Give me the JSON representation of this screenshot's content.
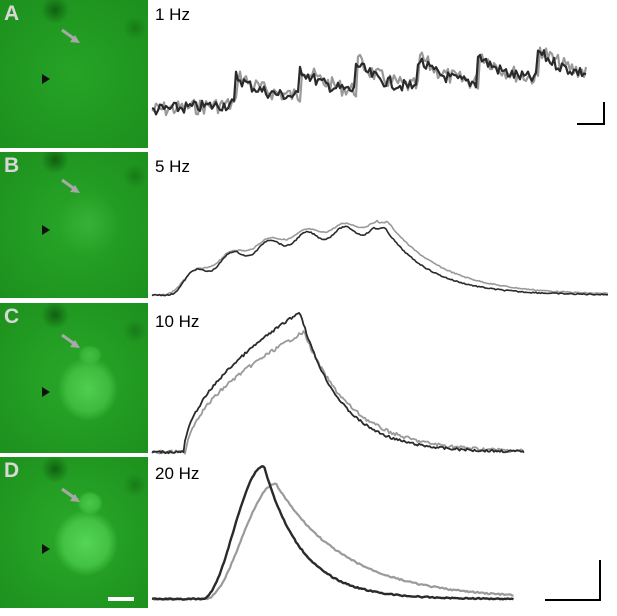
{
  "panels": [
    {
      "letter": "A",
      "frequency": "1 Hz",
      "cell_brightness": 0.0
    },
    {
      "letter": "B",
      "frequency": "5 Hz",
      "cell_brightness": 0.25
    },
    {
      "letter": "C",
      "frequency": "10 Hz",
      "cell_brightness": 0.7
    },
    {
      "letter": "D",
      "frequency": "20 Hz",
      "cell_brightness": 0.9
    }
  ],
  "colors": {
    "background_green": "#1f9a1f",
    "cell_green": "#45c445",
    "trace_dark": "#2a2a2a",
    "trace_gray": "#9a9a9a",
    "arrow_gray": "#a8a8a8",
    "arrowhead_black": "#111111",
    "scale_bar": "#ffffff"
  },
  "icons": [
    "gray-arrow-icon",
    "black-arrowhead-icon",
    "scale-bar"
  ]
}
